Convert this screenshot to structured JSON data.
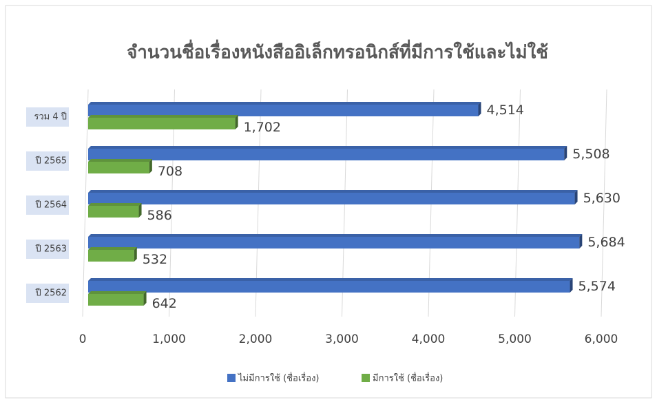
{
  "chart_data": {
    "type": "bar",
    "orientation": "horizontal",
    "title": "จำนวนชื่อเรื่องหนังสืออิเล็กทรอนิกส์ที่มีการใช้และไม่ใช้",
    "categories": [
      "รวม 4 ปี",
      "ปี 2565",
      "ปี 2564",
      "ปี 2563",
      "ปี 2562"
    ],
    "series": [
      {
        "name": "ไม่มีการใช้ (ชื่อเรื่อง)",
        "color": "#4472c4",
        "values": [
          4514,
          5508,
          5630,
          5684,
          5574
        ],
        "value_labels": [
          "4,514",
          "5,508",
          "5,630",
          "5,684",
          "5,574"
        ]
      },
      {
        "name": "มีการใช้ (ชื่อเรื่อง)",
        "color": "#70ad47",
        "values": [
          1702,
          708,
          586,
          532,
          642
        ],
        "value_labels": [
          "1,702",
          "708",
          "586",
          "532",
          "642"
        ]
      }
    ],
    "xlim": [
      0,
      6000
    ],
    "xticks": [
      0,
      {
        "value": 1000,
        "label": "1,000"
      },
      {
        "value": 2000,
        "label": "2,000"
      },
      {
        "value": 3000,
        "label": "3,000"
      },
      {
        "value": 4000,
        "label": "4,000"
      },
      {
        "value": 5000,
        "label": "5,000"
      },
      {
        "value": 6000,
        "label": "6,000"
      }
    ],
    "grid": true,
    "legend": "bottom"
  }
}
